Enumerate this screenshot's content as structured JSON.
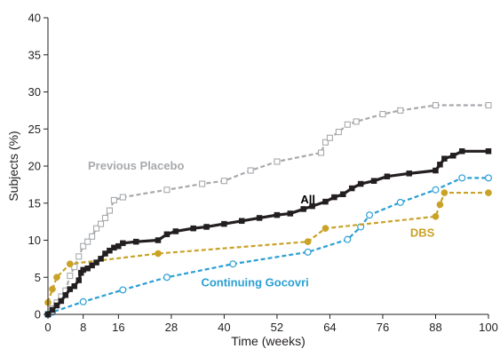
{
  "chart_data": {
    "type": "line",
    "xlabel": "Time (weeks)",
    "ylabel": "Subjects (%)",
    "xlim": [
      0,
      100
    ],
    "ylim": [
      0,
      40
    ],
    "xticks": [
      0,
      8,
      16,
      28,
      40,
      52,
      64,
      76,
      88,
      100
    ],
    "yticks": [
      0,
      5,
      10,
      15,
      20,
      25,
      30,
      35,
      40
    ],
    "grid": false,
    "series": [
      {
        "name": "Previous Placebo",
        "color": "#a7a9ac",
        "style": "dashed",
        "marker": "open-square",
        "label_anchor": [
          20,
          19.5
        ],
        "points": [
          [
            0,
            0
          ],
          [
            1,
            0.8
          ],
          [
            2,
            1.6
          ],
          [
            3,
            2.4
          ],
          [
            4,
            3.2
          ],
          [
            5,
            5.2
          ],
          [
            6,
            6.4
          ],
          [
            7,
            7.8
          ],
          [
            8,
            9.2
          ],
          [
            9,
            9.8
          ],
          [
            10,
            10.5
          ],
          [
            11,
            11.6
          ],
          [
            12,
            12.2
          ],
          [
            13,
            13
          ],
          [
            14,
            14
          ],
          [
            15,
            15.4
          ],
          [
            17,
            15.8
          ],
          [
            27,
            16.8
          ],
          [
            35,
            17.6
          ],
          [
            40,
            18
          ],
          [
            46,
            19.4
          ],
          [
            52,
            20.6
          ],
          [
            62,
            21.8
          ],
          [
            63,
            23.2
          ],
          [
            64,
            23.8
          ],
          [
            66,
            24.6
          ],
          [
            68,
            25.6
          ],
          [
            70,
            26
          ],
          [
            76,
            27
          ],
          [
            80,
            27.5
          ],
          [
            88,
            28.2
          ],
          [
            100,
            28.2
          ]
        ]
      },
      {
        "name": "All",
        "color": "#231f20",
        "style": "solid",
        "marker": "filled-square",
        "label_anchor": [
          59,
          15
        ],
        "points": [
          [
            0,
            0
          ],
          [
            1,
            0.6
          ],
          [
            2,
            1.2
          ],
          [
            3,
            1.8
          ],
          [
            4,
            2.6
          ],
          [
            5,
            3.4
          ],
          [
            6,
            3.8
          ],
          [
            7,
            4.6
          ],
          [
            7.5,
            5.6
          ],
          [
            8,
            6
          ],
          [
            9,
            6.2
          ],
          [
            10,
            6.6
          ],
          [
            11,
            7
          ],
          [
            12,
            7.5
          ],
          [
            13,
            8.2
          ],
          [
            14,
            8.6
          ],
          [
            15,
            9
          ],
          [
            16,
            9.2
          ],
          [
            17,
            9.6
          ],
          [
            20,
            9.8
          ],
          [
            25,
            10
          ],
          [
            27,
            10.8
          ],
          [
            29,
            11.2
          ],
          [
            33,
            11.6
          ],
          [
            36,
            11.8
          ],
          [
            40,
            12.2
          ],
          [
            44,
            12.6
          ],
          [
            48,
            13
          ],
          [
            52,
            13.4
          ],
          [
            55,
            13.6
          ],
          [
            58,
            14.2
          ],
          [
            60,
            14.6
          ],
          [
            63,
            15.2
          ],
          [
            65,
            15.8
          ],
          [
            67,
            16.2
          ],
          [
            69,
            17
          ],
          [
            71,
            17.6
          ],
          [
            74,
            18
          ],
          [
            77,
            18.6
          ],
          [
            82,
            19
          ],
          [
            88,
            19.4
          ],
          [
            89,
            20.2
          ],
          [
            90,
            21
          ],
          [
            92,
            21.4
          ],
          [
            94,
            22
          ],
          [
            100,
            22
          ]
        ]
      },
      {
        "name": "DBS",
        "color": "#c9a227",
        "style": "dashed",
        "marker": "filled-circle",
        "label_anchor": [
          85,
          10.5
        ],
        "points": [
          [
            0,
            1.6
          ],
          [
            1,
            3.4
          ],
          [
            2,
            5
          ],
          [
            5,
            6.8
          ],
          [
            25,
            8.2
          ],
          [
            59,
            9.8
          ],
          [
            63,
            11.6
          ],
          [
            88,
            13.2
          ],
          [
            89,
            14.8
          ],
          [
            90,
            16.4
          ],
          [
            100,
            16.4
          ]
        ]
      },
      {
        "name": "Continuing Gocovri",
        "color": "#2b9fd3",
        "style": "dashed",
        "marker": "open-circle",
        "label_anchor": [
          47,
          3.8
        ],
        "points": [
          [
            0,
            0
          ],
          [
            1,
            0.3
          ],
          [
            8,
            1.7
          ],
          [
            17,
            3.3
          ],
          [
            27,
            5
          ],
          [
            42,
            6.8
          ],
          [
            59,
            8.4
          ],
          [
            68,
            10.1
          ],
          [
            71,
            11.8
          ],
          [
            73,
            13.4
          ],
          [
            80,
            15.1
          ],
          [
            88,
            16.8
          ],
          [
            94,
            18.4
          ],
          [
            100,
            18.4
          ]
        ]
      }
    ]
  }
}
